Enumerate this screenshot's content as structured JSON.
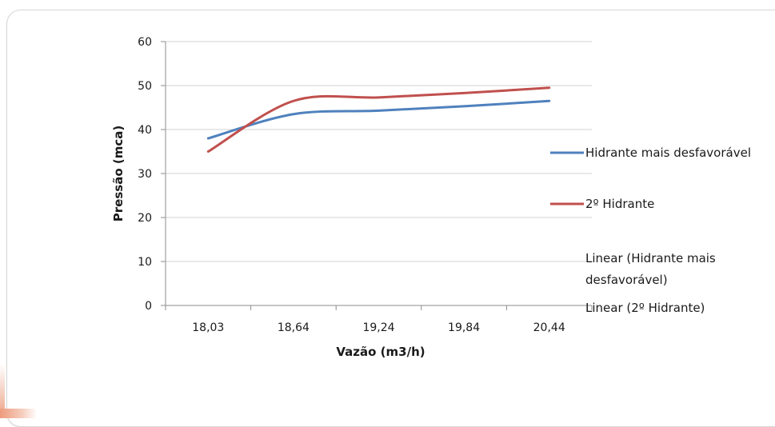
{
  "chart_data": {
    "type": "line",
    "categories": [
      "18,03",
      "18,64",
      "19,24",
      "19,84",
      "20,44"
    ],
    "xlabel": "Vazão (m3/h)",
    "ylabel": "Pressão (mca)",
    "ylim": [
      0,
      60
    ],
    "yticks": [
      "0",
      "10",
      "20",
      "30",
      "40",
      "50",
      "60"
    ],
    "grid": true,
    "legend_position": "right",
    "series": [
      {
        "name": "Hidrante mais desfavorável",
        "color": "#4f81bd",
        "values": [
          38,
          43.5,
          44.3,
          45.3,
          46.5
        ]
      },
      {
        "name": "2º Hidrante",
        "color": "#c0504d",
        "values": [
          35,
          46.5,
          47.3,
          48.3,
          49.5
        ]
      }
    ],
    "trendline_labels": [
      {
        "name": "Linear (Hidrante mais desfavorável)",
        "line1": "Linear (Hidrante mais",
        "line2": "desfavorável)"
      },
      {
        "name": "Linear (2º Hidrante)",
        "line1": "Linear (2º Hidrante)"
      }
    ]
  }
}
